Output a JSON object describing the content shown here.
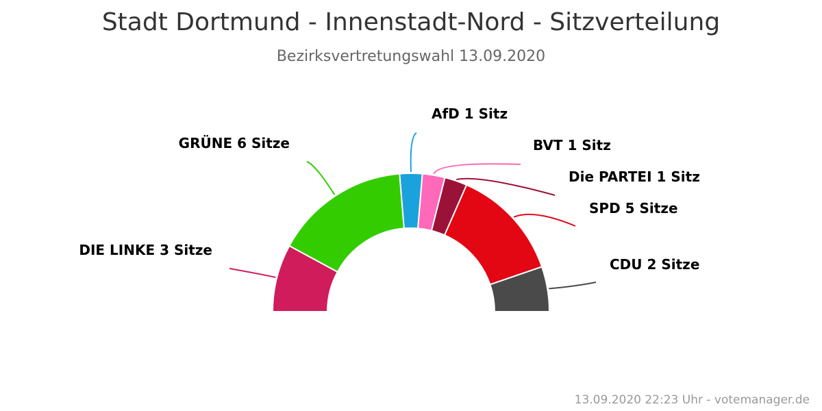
{
  "chart_data": {
    "type": "pie",
    "variant": "parliament-semicircle",
    "title": "Stadt Dortmund - Innenstadt-Nord - Sitzverteilung",
    "subtitle": "Bezirksvertretungswahl 13.09.2020",
    "credit": "13.09.2020 22:23 Uhr - votemanager.de",
    "unit_singular": "Sitz",
    "unit_plural": "Sitze",
    "total": 19,
    "series": [
      {
        "name": "DIE LINKE",
        "value": 3,
        "label": "DIE LINKE 3 Sitze",
        "color": "#d01c5b"
      },
      {
        "name": "GRÜNE",
        "value": 6,
        "label": "GRÜNE 6 Sitze",
        "color": "#33cc00"
      },
      {
        "name": "AfD",
        "value": 1,
        "label": "AfD 1 Sitz",
        "color": "#1ba1dc"
      },
      {
        "name": "BVT",
        "value": 1,
        "label": "BVT 1 Sitz",
        "color": "#ff69b9"
      },
      {
        "name": "Die PARTEI",
        "value": 1,
        "label": "Die PARTEI 1 Sitz",
        "color": "#9b1238"
      },
      {
        "name": "SPD",
        "value": 5,
        "label": "SPD 5 Sitze",
        "color": "#e30613"
      },
      {
        "name": "CDU",
        "value": 2,
        "label": "CDU 2 Sitze",
        "color": "#4a4a4a"
      }
    ]
  }
}
